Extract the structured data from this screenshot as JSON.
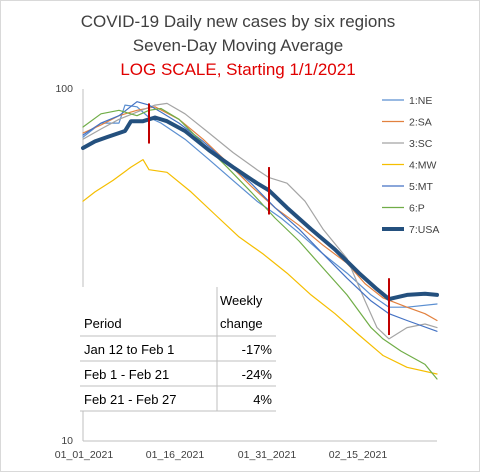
{
  "chart_data": {
    "type": "line",
    "title_lines": [
      "COVID-19 Daily new cases by six regions",
      "Seven-Day Moving Average"
    ],
    "subtitle": "LOG SCALE, Starting 1/1/2021",
    "y_scale": "log",
    "ylim": [
      10,
      100
    ],
    "ytick_labels": [
      "100",
      "10"
    ],
    "x_start": "2021-01-01",
    "x_end": "2021-03-01",
    "xtick_labels": [
      "01_01_2021",
      "01_16_2021",
      "01_31_2021",
      "02_15_2021"
    ],
    "grid": false,
    "legend_position": "right",
    "colors": {
      "1:NE": "#5b8fd1",
      "2:SA": "#e2813f",
      "3:SC": "#a5a5a5",
      "4:MW": "#f5be00",
      "5:MT": "#4472c4",
      "6:P": "#70ad47",
      "7:USA": "#24507e",
      "marker": "#c00000"
    },
    "series": [
      {
        "name": "1:NE",
        "points": [
          [
            "2021-01-01",
            73
          ],
          [
            "2021-01-04",
            80
          ],
          [
            "2021-01-07",
            80
          ],
          [
            "2021-01-08",
            90
          ],
          [
            "2021-01-10",
            89
          ],
          [
            "2021-01-12",
            83
          ],
          [
            "2021-01-14",
            80
          ],
          [
            "2021-01-18",
            72
          ],
          [
            "2021-01-22",
            63
          ],
          [
            "2021-01-26",
            55
          ],
          [
            "2021-01-30",
            48
          ],
          [
            "2021-02-03",
            43
          ],
          [
            "2021-02-06",
            39
          ],
          [
            "2021-02-10",
            34
          ],
          [
            "2021-02-14",
            30
          ],
          [
            "2021-02-18",
            26
          ],
          [
            "2021-02-21",
            24
          ],
          [
            "2021-02-24",
            24
          ],
          [
            "2021-03-01",
            24.5
          ]
        ]
      },
      {
        "name": "2:SA",
        "points": [
          [
            "2021-01-01",
            75
          ],
          [
            "2021-01-04",
            79
          ],
          [
            "2021-01-07",
            84
          ],
          [
            "2021-01-10",
            87
          ],
          [
            "2021-01-13",
            89
          ],
          [
            "2021-01-17",
            82
          ],
          [
            "2021-01-21",
            72
          ],
          [
            "2021-01-25",
            62
          ],
          [
            "2021-01-29",
            53
          ],
          [
            "2021-02-02",
            46
          ],
          [
            "2021-02-06",
            41
          ],
          [
            "2021-02-10",
            36
          ],
          [
            "2021-02-14",
            32
          ],
          [
            "2021-02-17",
            28
          ],
          [
            "2021-02-20",
            25.5
          ],
          [
            "2021-02-24",
            24
          ],
          [
            "2021-02-27",
            23
          ],
          [
            "2021-03-01",
            22
          ]
        ]
      },
      {
        "name": "3:SC",
        "points": [
          [
            "2021-01-01",
            72
          ],
          [
            "2021-01-04",
            77
          ],
          [
            "2021-01-07",
            82
          ],
          [
            "2021-01-10",
            86
          ],
          [
            "2021-01-13",
            90
          ],
          [
            "2021-01-15",
            91
          ],
          [
            "2021-01-18",
            85
          ],
          [
            "2021-01-22",
            75
          ],
          [
            "2021-01-26",
            66
          ],
          [
            "2021-01-30",
            59
          ],
          [
            "2021-02-01",
            56
          ],
          [
            "2021-02-04",
            54
          ],
          [
            "2021-02-07",
            48
          ],
          [
            "2021-02-10",
            40
          ],
          [
            "2021-02-14",
            33
          ],
          [
            "2021-02-17",
            25
          ],
          [
            "2021-02-19",
            21
          ],
          [
            "2021-02-21",
            19.5
          ],
          [
            "2021-02-24",
            21
          ],
          [
            "2021-02-27",
            21.5
          ],
          [
            "2021-03-01",
            21
          ]
        ]
      },
      {
        "name": "4:MW",
        "points": [
          [
            "2021-01-01",
            48
          ],
          [
            "2021-01-03",
            51
          ],
          [
            "2021-01-06",
            55
          ],
          [
            "2021-01-09",
            60
          ],
          [
            "2021-01-11",
            63
          ],
          [
            "2021-01-12",
            59
          ],
          [
            "2021-01-15",
            58
          ],
          [
            "2021-01-19",
            51
          ],
          [
            "2021-01-23",
            44
          ],
          [
            "2021-01-27",
            38
          ],
          [
            "2021-01-31",
            34
          ],
          [
            "2021-02-04",
            30
          ],
          [
            "2021-02-08",
            26
          ],
          [
            "2021-02-12",
            23
          ],
          [
            "2021-02-16",
            20
          ],
          [
            "2021-02-20",
            17.5
          ],
          [
            "2021-02-24",
            16.2
          ],
          [
            "2021-03-01",
            15.5
          ]
        ]
      },
      {
        "name": "5:MT",
        "points": [
          [
            "2021-01-01",
            74
          ],
          [
            "2021-01-04",
            80
          ],
          [
            "2021-01-07",
            84
          ],
          [
            "2021-01-10",
            92
          ],
          [
            "2021-01-12",
            90
          ],
          [
            "2021-01-14",
            86
          ],
          [
            "2021-01-17",
            80
          ],
          [
            "2021-01-21",
            71
          ],
          [
            "2021-01-25",
            62
          ],
          [
            "2021-01-29",
            54
          ],
          [
            "2021-02-02",
            46
          ],
          [
            "2021-02-06",
            40
          ],
          [
            "2021-02-10",
            34
          ],
          [
            "2021-02-14",
            29
          ],
          [
            "2021-02-18",
            25
          ],
          [
            "2021-02-21",
            23
          ],
          [
            "2021-02-24",
            22
          ],
          [
            "2021-03-01",
            20.5
          ]
        ]
      },
      {
        "name": "6:P",
        "points": [
          [
            "2021-01-01",
            78
          ],
          [
            "2021-01-04",
            85
          ],
          [
            "2021-01-07",
            87
          ],
          [
            "2021-01-10",
            84
          ],
          [
            "2021-01-12",
            87
          ],
          [
            "2021-01-14",
            88
          ],
          [
            "2021-01-17",
            82
          ],
          [
            "2021-01-21",
            70
          ],
          [
            "2021-01-25",
            60
          ],
          [
            "2021-01-29",
            51
          ],
          [
            "2021-02-02",
            43
          ],
          [
            "2021-02-06",
            37
          ],
          [
            "2021-02-10",
            31
          ],
          [
            "2021-02-14",
            26
          ],
          [
            "2021-02-18",
            21
          ],
          [
            "2021-02-20",
            19.5
          ],
          [
            "2021-02-23",
            18
          ],
          [
            "2021-02-27",
            16.5
          ],
          [
            "2021-03-01",
            15
          ]
        ]
      },
      {
        "name": "7:USA",
        "points": [
          [
            "2021-01-01",
            68
          ],
          [
            "2021-01-03",
            71
          ],
          [
            "2021-01-05",
            73
          ],
          [
            "2021-01-08",
            76
          ],
          [
            "2021-01-09",
            81
          ],
          [
            "2021-01-11",
            81
          ],
          [
            "2021-01-13",
            83
          ],
          [
            "2021-01-15",
            81
          ],
          [
            "2021-01-18",
            76
          ],
          [
            "2021-01-22",
            67
          ],
          [
            "2021-01-26",
            60
          ],
          [
            "2021-01-30",
            54
          ],
          [
            "2021-02-01",
            51.5
          ],
          [
            "2021-02-04",
            46
          ],
          [
            "2021-02-08",
            40
          ],
          [
            "2021-02-12",
            35
          ],
          [
            "2021-02-16",
            30
          ],
          [
            "2021-02-19",
            27
          ],
          [
            "2021-02-21",
            25.3
          ],
          [
            "2021-02-24",
            26
          ],
          [
            "2021-02-27",
            26.2
          ],
          [
            "2021-03-01",
            26
          ]
        ]
      }
    ],
    "markers": [
      {
        "date": "2021-01-12",
        "low": 70,
        "high": 91
      },
      {
        "date": "2021-02-01",
        "low": 44,
        "high": 60
      },
      {
        "date": "2021-02-21",
        "low": 20,
        "high": 29
      }
    ],
    "table": {
      "header": {
        "period": "Period",
        "change_line1": "Weekly",
        "change_line2": "change"
      },
      "rows": [
        {
          "period": "Jan 12 to Feb 1",
          "change": "-17%"
        },
        {
          "period": "Feb 1 - Feb 21",
          "change": "-24%"
        },
        {
          "period": "Feb 21 - Feb 27",
          "change": "4%"
        }
      ]
    }
  }
}
